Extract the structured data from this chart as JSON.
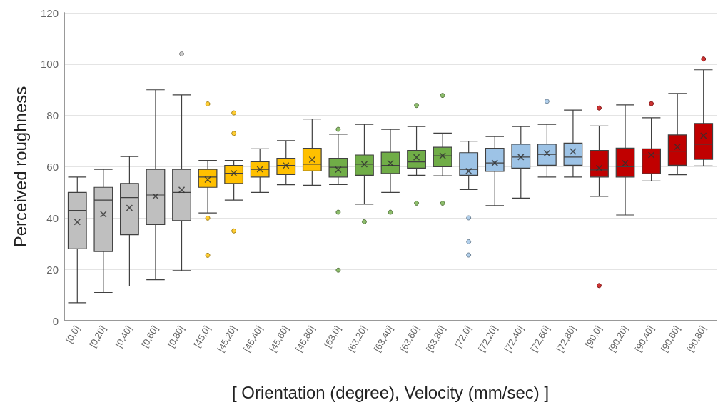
{
  "chart_data": {
    "type": "box",
    "xlabel": "[ Orientation (degree), Velocity (mm/sec) ]",
    "ylabel": "Perceived roughness",
    "categories": [
      "[0,0]",
      "[0,20]",
      "[0,40]",
      "[0,60]",
      "[0,80]",
      "[45,0]",
      "[45,20]",
      "[45,40]",
      "[45,60]",
      "[45,80]",
      "[63,0]",
      "[63,20]",
      "[63,40]",
      "[63,60]",
      "[63,80]",
      "[72,0]",
      "[72,20]",
      "[72,40]",
      "[72,60]",
      "[72,80]",
      "[90,0]",
      "[90,20]",
      "[90,40]",
      "[90,60]",
      "[90,80]"
    ],
    "colors": [
      "#bfbfbf",
      "#bfbfbf",
      "#bfbfbf",
      "#bfbfbf",
      "#bfbfbf",
      "#ffc000",
      "#ffc000",
      "#ffc000",
      "#ffc000",
      "#ffc000",
      "#70ad47",
      "#70ad47",
      "#70ad47",
      "#70ad47",
      "#70ad47",
      "#9dc3e6",
      "#9dc3e6",
      "#9dc3e6",
      "#9dc3e6",
      "#9dc3e6",
      "#c00000",
      "#c00000",
      "#c00000",
      "#c00000",
      "#c00000"
    ],
    "boxes": [
      {
        "low": 7,
        "q1": 28,
        "median": 43,
        "q3": 50,
        "high": 56,
        "mean": 38.5
      },
      {
        "low": 11,
        "q1": 27,
        "median": 47,
        "q3": 52,
        "high": 59,
        "mean": 41.5
      },
      {
        "low": 13.5,
        "q1": 33.5,
        "median": 48,
        "q3": 53.5,
        "high": 64,
        "mean": 44
      },
      {
        "low": 16,
        "q1": 37.5,
        "median": 49,
        "q3": 59,
        "high": 90,
        "mean": 48.5
      },
      {
        "low": 19.5,
        "q1": 39,
        "median": 50,
        "q3": 59,
        "high": 88,
        "mean": 51,
        "outliers": [
          104
        ]
      },
      {
        "low": 42,
        "q1": 52,
        "median": 56,
        "q3": 59,
        "high": 62.5,
        "mean": 55,
        "outliers": [
          84.5,
          40,
          25.5
        ]
      },
      {
        "low": 47,
        "q1": 53.5,
        "median": 57.5,
        "q3": 60.5,
        "high": 62.5,
        "mean": 57.5,
        "outliers": [
          81,
          73,
          35
        ]
      },
      {
        "low": 50,
        "q1": 56,
        "median": 59,
        "q3": 62,
        "high": 67,
        "mean": 59
      },
      {
        "low": 53,
        "q1": 57,
        "median": 60.5,
        "q3": 63.3,
        "high": 70.2,
        "mean": 60.5
      },
      {
        "low": 52.8,
        "q1": 58.4,
        "median": 61,
        "q3": 67.2,
        "high": 78.6,
        "mean": 62.8
      },
      {
        "low": 53.1,
        "q1": 56,
        "median": 59.8,
        "q3": 63.3,
        "high": 72.7,
        "mean": 58.9,
        "outliers": [
          74.6,
          42.3,
          19.7
        ]
      },
      {
        "low": 45.4,
        "q1": 56.7,
        "median": 61,
        "q3": 64.6,
        "high": 76.5,
        "mean": 61,
        "outliers": [
          38.6
        ]
      },
      {
        "low": 50,
        "q1": 57.4,
        "median": 60.5,
        "q3": 65.7,
        "high": 74.6,
        "mean": 61.4,
        "outliers": [
          42.3
        ]
      },
      {
        "low": 56.7,
        "q1": 59.5,
        "median": 61.9,
        "q3": 66.4,
        "high": 75.7,
        "mean": 63.7,
        "outliers": [
          83.9,
          45.8
        ]
      },
      {
        "low": 56.5,
        "q1": 60,
        "median": 64.3,
        "q3": 67.6,
        "high": 73.1,
        "mean": 64.3,
        "outliers": [
          87.8,
          45.8
        ]
      },
      {
        "low": 51.1,
        "q1": 56.7,
        "median": 59,
        "q3": 65.5,
        "high": 70,
        "mean": 58.3,
        "outliers": [
          40.1,
          30.8,
          25.6
        ]
      },
      {
        "low": 44.9,
        "q1": 58.2,
        "median": 61.5,
        "q3": 67.2,
        "high": 71.8,
        "mean": 61.5
      },
      {
        "low": 47.8,
        "q1": 59.5,
        "median": 63.8,
        "q3": 68.8,
        "high": 75.7,
        "mean": 63.8
      },
      {
        "low": 56,
        "q1": 60.6,
        "median": 64.8,
        "q3": 68.8,
        "high": 76.5,
        "mean": 65.3,
        "outliers": [
          85.5
        ]
      },
      {
        "low": 56,
        "q1": 60.6,
        "median": 63.8,
        "q3": 69.2,
        "high": 82.1,
        "mean": 66
      },
      {
        "low": 48.5,
        "q1": 56,
        "median": 58.8,
        "q3": 66.4,
        "high": 75.9,
        "mean": 59.5,
        "outliers": [
          82.9,
          13.7
        ]
      },
      {
        "low": 41.2,
        "q1": 56,
        "median": 60,
        "q3": 67.3,
        "high": 84.1,
        "mean": 61.4
      },
      {
        "low": 54.5,
        "q1": 57.3,
        "median": 65,
        "q3": 67,
        "high": 79.1,
        "mean": 64.6,
        "outliers": [
          84.6
        ]
      },
      {
        "low": 56.9,
        "q1": 60.6,
        "median": 66.1,
        "q3": 72.4,
        "high": 88.6,
        "mean": 67.8
      },
      {
        "low": 60.3,
        "q1": 62.9,
        "median": 68.8,
        "q3": 76.9,
        "high": 97.8,
        "mean": 72.1,
        "outliers": [
          102
        ]
      }
    ],
    "ylim": [
      0,
      120
    ],
    "yticks": [
      0,
      20,
      40,
      60,
      80,
      100,
      120
    ],
    "grid": "y"
  }
}
